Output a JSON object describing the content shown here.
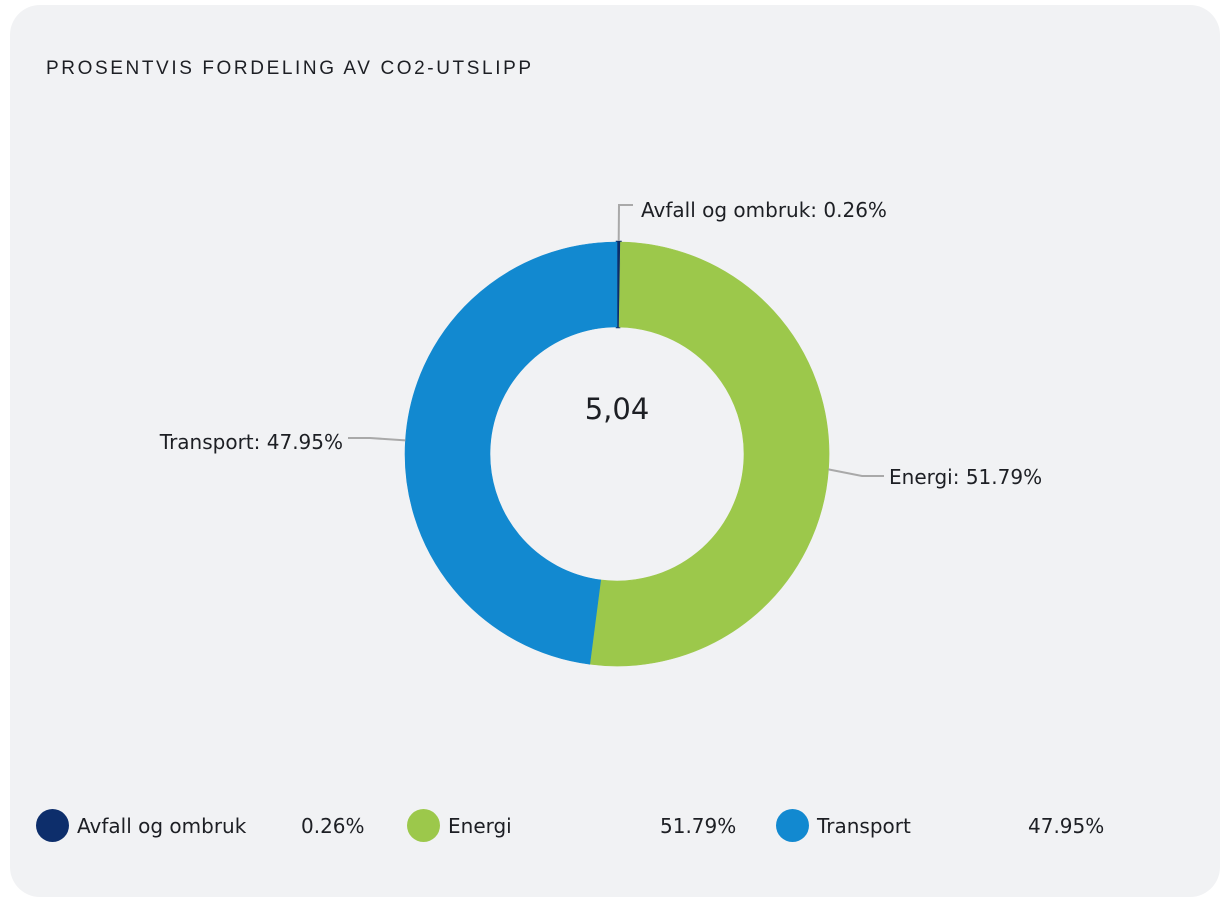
{
  "card": {
    "title": "PROSENTVIS FORDELING AV CO2-UTSLIPP"
  },
  "chart_data": {
    "type": "pie",
    "variant": "donut",
    "center_label": "5,04",
    "grid": false,
    "legend_position": "bottom",
    "slices": [
      {
        "name": "Avfall og ombruk",
        "value": 0.26,
        "label": "Avfall og ombruk: 0.26%",
        "legend_value": "0.26%",
        "color": "#0d2e6b"
      },
      {
        "name": "Energi",
        "value": 51.79,
        "label": "Energi: 51.79%",
        "legend_value": "51.79%",
        "color": "#9cc84b"
      },
      {
        "name": "Transport",
        "value": 47.95,
        "label": "Transport: 47.95%",
        "legend_value": "47.95%",
        "color": "#1289d0"
      }
    ]
  }
}
